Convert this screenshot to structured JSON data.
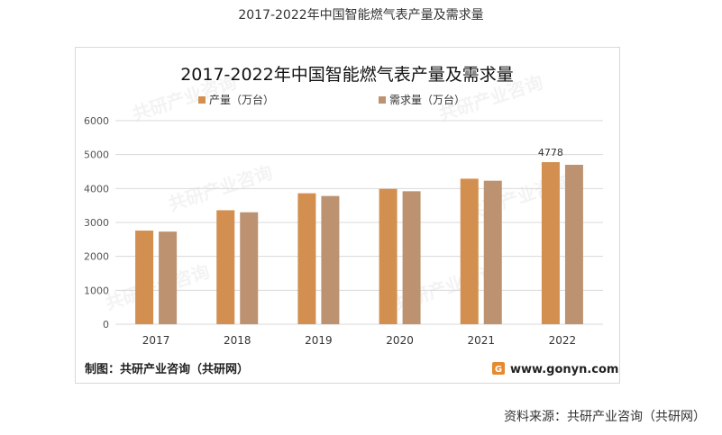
{
  "page_title": "2017-2022年中国智能燃气表产量及需求量",
  "source_text": "资料来源：共研产业咨询（共研网）",
  "footer": {
    "left": "制图：共研产业咨询（共研网）",
    "right": "www.gonyn.com"
  },
  "watermark_text": "共研产业咨询",
  "colors": {
    "production": "#D38F4F",
    "demand": "#BC9270",
    "grid": "#D9D9D9"
  },
  "chart_data": {
    "type": "bar",
    "title": "2017-2022年中国智能燃气表产量及需求量",
    "categories": [
      "2017",
      "2018",
      "2019",
      "2020",
      "2021",
      "2022"
    ],
    "series": [
      {
        "name": "产量（万台）",
        "values": [
          2760,
          3360,
          3860,
          3990,
          4290,
          4778
        ]
      },
      {
        "name": "需求量（万台）",
        "values": [
          2730,
          3300,
          3780,
          3920,
          4230,
          4700
        ]
      }
    ],
    "data_labels": [
      {
        "series": 0,
        "index": 5,
        "text": "4778"
      }
    ],
    "yticks": [
      "0",
      "1000",
      "2000",
      "3000",
      "4000",
      "5000",
      "6000"
    ],
    "ylim": [
      0,
      6000
    ],
    "grid": true,
    "legend": "top"
  }
}
